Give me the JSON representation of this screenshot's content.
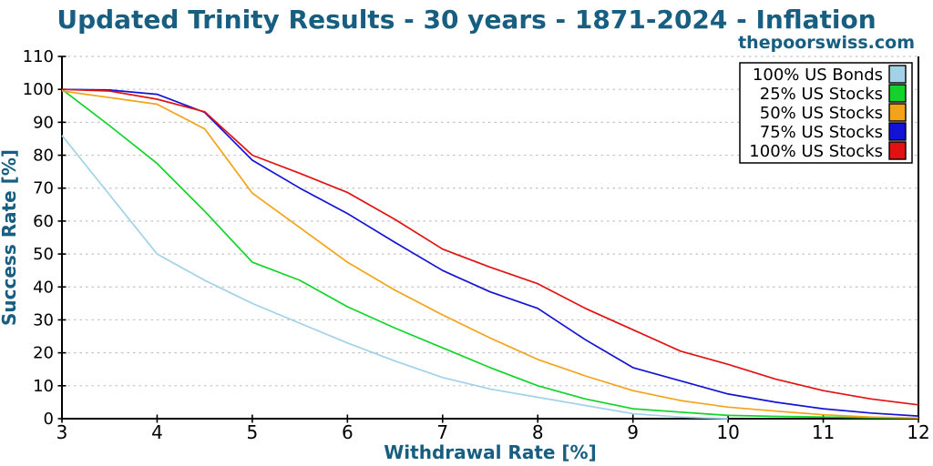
{
  "header": {
    "title": "Updated Trinity Results - 30 years - 1871-2024 - Inflation",
    "watermark": "thepoorswiss.com"
  },
  "colors": {
    "title": "#175e80",
    "watermark": "#175e80",
    "axis_label": "#175e80",
    "tick_label": "#000000",
    "spine": "#000000",
    "grid": "#c3c3c3",
    "legend_border": "#000000",
    "legend_bg": "#ffffff"
  },
  "chart_data": {
    "type": "line",
    "title": "Updated Trinity Results - 30 years - 1871-2024 - Inflation",
    "xlabel": "Withdrawal Rate [%]",
    "ylabel": "Success Rate [%]",
    "xlim": [
      3,
      12
    ],
    "ylim": [
      0,
      110
    ],
    "xticks": [
      3,
      4,
      5,
      6,
      7,
      8,
      9,
      10,
      11,
      12
    ],
    "yticks": [
      0,
      10,
      20,
      30,
      40,
      50,
      60,
      70,
      80,
      90,
      100,
      110
    ],
    "grid": "horizontal-dashed",
    "legend_position": "top-right",
    "x": [
      3,
      3.5,
      4,
      4.5,
      5,
      5.5,
      6,
      6.5,
      7,
      7.5,
      8,
      8.5,
      9,
      9.5,
      10,
      10.5,
      11,
      11.5,
      12
    ],
    "series": [
      {
        "name": "100% US Bonds",
        "color": "#a2d1e8",
        "values": [
          86,
          68,
          50,
          42,
          35,
          29,
          23,
          17.5,
          12.5,
          9,
          6.5,
          4,
          1.5,
          0.5,
          0,
          null,
          null,
          null,
          null
        ]
      },
      {
        "name": "25% US Stocks",
        "color": "#12d32a",
        "values": [
          100,
          89,
          77.5,
          63,
          47.5,
          42,
          34,
          27.5,
          21.5,
          15.5,
          10,
          6,
          3,
          2,
          1,
          0.7,
          0.5,
          0.3,
          0.2
        ]
      },
      {
        "name": "50% US Stocks",
        "color": "#f3a318",
        "values": [
          99.5,
          97.5,
          95.5,
          88,
          68.5,
          58,
          47.5,
          39,
          31.5,
          24.5,
          18,
          13,
          8.5,
          5.5,
          3.5,
          2.3,
          1.2,
          0.5,
          0.2
        ]
      },
      {
        "name": "75% US Stocks",
        "color": "#1313d6",
        "values": [
          100,
          99.8,
          98.5,
          93,
          78.5,
          70,
          62.3,
          53.5,
          45,
          38.5,
          33.5,
          24,
          15.5,
          11.5,
          7.5,
          5,
          3,
          1.7,
          0.8
        ]
      },
      {
        "name": "100% US Stocks",
        "color": "#e21212",
        "values": [
          100,
          99.5,
          97,
          93.2,
          80,
          74.5,
          68.7,
          60.5,
          51.5,
          46,
          41,
          33.5,
          27,
          20.5,
          16.5,
          12,
          8.5,
          6,
          4.2
        ]
      }
    ]
  }
}
